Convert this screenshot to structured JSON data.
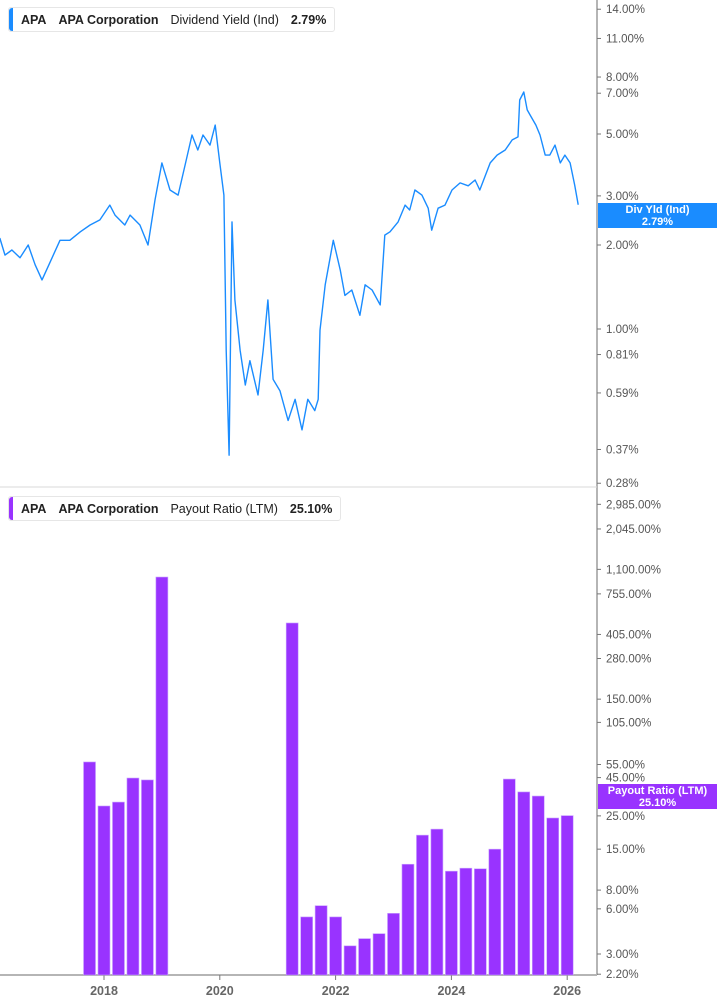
{
  "colors": {
    "yield": "#1a8cff",
    "payout": "#9933ff",
    "axis": "#b5b5b5"
  },
  "top_legend": {
    "ticker": "APA",
    "company": "APA Corporation",
    "metric": "Dividend Yield (Ind)",
    "value": "2.79%"
  },
  "bottom_legend": {
    "ticker": "APA",
    "company": "APA Corporation",
    "metric": "Payout Ratio (LTM)",
    "value": "25.10%"
  },
  "top_flag": {
    "label": "Div Yld (Ind)",
    "value": "2.79%"
  },
  "bottom_flag": {
    "label": "Payout Ratio (LTM)",
    "value": "25.10%"
  },
  "chart_data": [
    {
      "type": "line",
      "title": "Dividend Yield (Ind)",
      "yscale": "log",
      "ylim": [
        0.26,
        15
      ],
      "xlim": [
        2016.2,
        2026.6
      ],
      "grid": false,
      "y_ticks": [
        {
          "v": 14,
          "label": "14.00%"
        },
        {
          "v": 11,
          "label": "11.00%"
        },
        {
          "v": 8,
          "label": "8.00%"
        },
        {
          "v": 7,
          "label": "7.00%"
        },
        {
          "v": 5,
          "label": "5.00%"
        },
        {
          "v": 3,
          "label": "3.00%"
        },
        {
          "v": 2,
          "label": "2.00%"
        },
        {
          "v": 1,
          "label": "1.00%"
        },
        {
          "v": 0.81,
          "label": "0.81%"
        },
        {
          "v": 0.59,
          "label": "0.59%"
        },
        {
          "v": 0.37,
          "label": "0.37%"
        },
        {
          "v": 0.28,
          "label": "0.28%"
        }
      ],
      "series": [
        {
          "name": "Div Yld (Ind)",
          "points": [
            [
              2016.2,
              2.12
            ],
            [
              2016.29,
              1.84
            ],
            [
              2016.41,
              1.92
            ],
            [
              2016.55,
              1.8
            ],
            [
              2016.69,
              2.0
            ],
            [
              2016.81,
              1.7
            ],
            [
              2016.93,
              1.5
            ],
            [
              2017.07,
              1.74
            ],
            [
              2017.24,
              2.08
            ],
            [
              2017.41,
              2.08
            ],
            [
              2017.59,
              2.23
            ],
            [
              2017.76,
              2.36
            ],
            [
              2017.93,
              2.46
            ],
            [
              2018.1,
              2.78
            ],
            [
              2018.19,
              2.56
            ],
            [
              2018.36,
              2.36
            ],
            [
              2018.45,
              2.56
            ],
            [
              2018.62,
              2.36
            ],
            [
              2018.76,
              2.0
            ],
            [
              2018.88,
              2.9
            ],
            [
              2019.0,
              3.94
            ],
            [
              2019.14,
              3.15
            ],
            [
              2019.28,
              3.02
            ],
            [
              2019.4,
              3.87
            ],
            [
              2019.52,
              4.96
            ],
            [
              2019.62,
              4.38
            ],
            [
              2019.71,
              4.96
            ],
            [
              2019.83,
              4.56
            ],
            [
              2019.92,
              5.38
            ],
            [
              2020.0,
              3.94
            ],
            [
              2020.07,
              3.02
            ],
            [
              2020.11,
              0.84
            ],
            [
              2020.16,
              0.353
            ],
            [
              2020.21,
              2.42
            ],
            [
              2020.26,
              1.27
            ],
            [
              2020.35,
              0.84
            ],
            [
              2020.44,
              0.63
            ],
            [
              2020.52,
              0.77
            ],
            [
              2020.66,
              0.58
            ],
            [
              2020.75,
              0.84
            ],
            [
              2020.83,
              1.27
            ],
            [
              2020.92,
              0.66
            ],
            [
              2021.04,
              0.6
            ],
            [
              2021.18,
              0.47
            ],
            [
              2021.3,
              0.56
            ],
            [
              2021.42,
              0.435
            ],
            [
              2021.52,
              0.56
            ],
            [
              2021.64,
              0.51
            ],
            [
              2021.7,
              0.56
            ],
            [
              2021.73,
              0.99
            ],
            [
              2021.82,
              1.44
            ],
            [
              2021.96,
              2.08
            ],
            [
              2022.08,
              1.63
            ],
            [
              2022.16,
              1.32
            ],
            [
              2022.28,
              1.38
            ],
            [
              2022.42,
              1.12
            ],
            [
              2022.51,
              1.44
            ],
            [
              2022.63,
              1.38
            ],
            [
              2022.77,
              1.22
            ],
            [
              2022.85,
              2.17
            ],
            [
              2022.94,
              2.23
            ],
            [
              2023.08,
              2.42
            ],
            [
              2023.2,
              2.78
            ],
            [
              2023.28,
              2.67
            ],
            [
              2023.37,
              3.15
            ],
            [
              2023.49,
              3.02
            ],
            [
              2023.6,
              2.71
            ],
            [
              2023.66,
              2.26
            ],
            [
              2023.77,
              2.71
            ],
            [
              2023.89,
              2.78
            ],
            [
              2024.01,
              3.15
            ],
            [
              2024.15,
              3.34
            ],
            [
              2024.29,
              3.26
            ],
            [
              2024.41,
              3.42
            ],
            [
              2024.49,
              3.15
            ],
            [
              2024.67,
              3.94
            ],
            [
              2024.79,
              4.2
            ],
            [
              2024.93,
              4.38
            ],
            [
              2025.05,
              4.76
            ],
            [
              2025.15,
              4.88
            ],
            [
              2025.18,
              6.62
            ],
            [
              2025.25,
              7.07
            ],
            [
              2025.31,
              6.1
            ],
            [
              2025.36,
              5.85
            ],
            [
              2025.46,
              5.38
            ],
            [
              2025.53,
              4.96
            ],
            [
              2025.62,
              4.2
            ],
            [
              2025.7,
              4.2
            ],
            [
              2025.79,
              4.56
            ],
            [
              2025.88,
              3.94
            ],
            [
              2025.96,
              4.2
            ],
            [
              2026.05,
              3.94
            ],
            [
              2026.13,
              3.28
            ],
            [
              2026.19,
              2.79
            ]
          ]
        }
      ]
    },
    {
      "type": "bar",
      "title": "Payout Ratio (LTM)",
      "yscale": "log",
      "ylim": [
        2.1,
        3300
      ],
      "xlim": [
        2016.2,
        2026.6
      ],
      "grid": false,
      "x_ticks": [
        "2018",
        "2020",
        "2022",
        "2024",
        "2026"
      ],
      "y_ticks": [
        {
          "v": 2985,
          "label": "2,985.00%"
        },
        {
          "v": 2045,
          "label": "2,045.00%"
        },
        {
          "v": 1100,
          "label": "1,100.00%"
        },
        {
          "v": 755,
          "label": "755.00%"
        },
        {
          "v": 405,
          "label": "405.00%"
        },
        {
          "v": 280,
          "label": "280.00%"
        },
        {
          "v": 150,
          "label": "150.00%"
        },
        {
          "v": 105,
          "label": "105.00%"
        },
        {
          "v": 55,
          "label": "55.00%"
        },
        {
          "v": 45,
          "label": "45.00%"
        },
        {
          "v": 25,
          "label": "25.00%"
        },
        {
          "v": 15,
          "label": "15.00%"
        },
        {
          "v": 8,
          "label": "8.00%"
        },
        {
          "v": 6,
          "label": "6.00%"
        },
        {
          "v": 3,
          "label": "3.00%"
        },
        {
          "v": 2.2,
          "label": "2.20%"
        }
      ],
      "series": [
        {
          "name": "Payout Ratio (LTM)",
          "points": [
            [
              2017.75,
              57.2
            ],
            [
              2018.0,
              29.1
            ],
            [
              2018.25,
              30.9
            ],
            [
              2018.5,
              44.7
            ],
            [
              2018.75,
              43.4
            ],
            [
              2019.0,
              978
            ],
            [
              2021.25,
              483
            ],
            [
              2021.5,
              5.3
            ],
            [
              2021.75,
              6.3
            ],
            [
              2022.0,
              5.3
            ],
            [
              2022.25,
              3.4
            ],
            [
              2022.5,
              3.8
            ],
            [
              2022.75,
              4.1
            ],
            [
              2023.0,
              5.6
            ],
            [
              2023.25,
              11.9
            ],
            [
              2023.5,
              18.6
            ],
            [
              2023.75,
              20.4
            ],
            [
              2024.0,
              10.7
            ],
            [
              2024.25,
              11.2
            ],
            [
              2024.5,
              11.1
            ],
            [
              2024.75,
              15.0
            ],
            [
              2025.0,
              44.0
            ],
            [
              2025.25,
              36.1
            ],
            [
              2025.5,
              33.9
            ],
            [
              2025.75,
              24.2
            ],
            [
              2026.0,
              25.1
            ]
          ]
        }
      ]
    }
  ]
}
